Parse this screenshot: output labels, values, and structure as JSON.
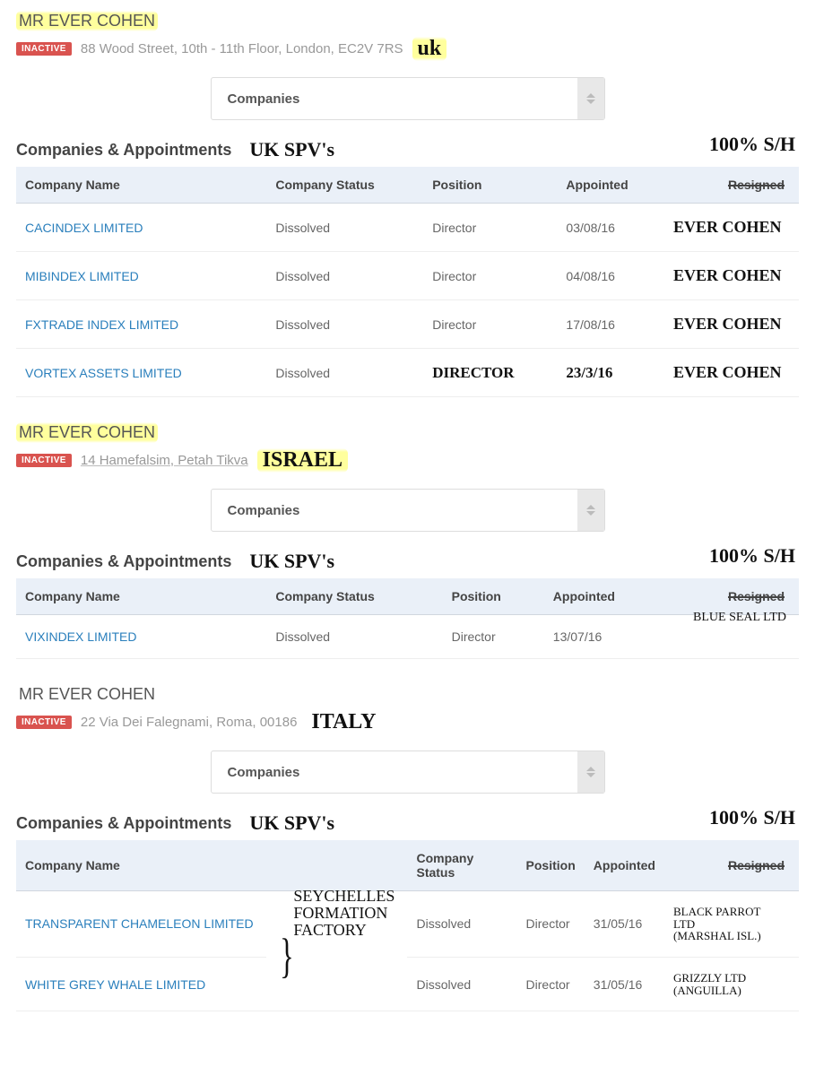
{
  "colors": {
    "badge_bg": "#d9534f",
    "link": "#2a7fbc",
    "thead_bg": "#eaf0f8",
    "highlight": "#fffa8f",
    "text": "#555555",
    "muted": "#999999",
    "border": "#e5e5e5"
  },
  "common": {
    "dropdown_label": "Companies",
    "ca_heading": "Companies & Appointments",
    "ca_hand": "UK SPV's",
    "sh_hand": "100% S/H",
    "badge": "INACTIVE",
    "th_company": "Company Name",
    "th_status": "Company Status",
    "th_position": "Position",
    "th_appointed": "Appointed",
    "th_resigned": "Resigned"
  },
  "sections": [
    {
      "name": "MR EVER COHEN",
      "highlight_name": true,
      "address": "88 Wood Street, 10th - 11th Floor, London, EC2V 7RS",
      "underline_addr": false,
      "country_hand": "uk",
      "country_highlight": true,
      "rows": [
        {
          "company": "CACINDEX LIMITED",
          "status": "Dissolved",
          "position": "Director",
          "appointed": "03/08/16",
          "note": "EVER COHEN",
          "pos_hand": false,
          "app_hand": false
        },
        {
          "company": "MIBINDEX LIMITED",
          "status": "Dissolved",
          "position": "Director",
          "appointed": "04/08/16",
          "note": "EVER COHEN",
          "pos_hand": false,
          "app_hand": false
        },
        {
          "company": "FXTRADE INDEX LIMITED",
          "status": "Dissolved",
          "position": "Director",
          "appointed": "17/08/16",
          "note": "EVER COHEN",
          "pos_hand": false,
          "app_hand": false
        },
        {
          "company": "VORTEX ASSETS LIMITED",
          "status": "Dissolved",
          "position": "DIRECTOR",
          "appointed": "23/3/16",
          "note": "EVER COHEN",
          "pos_hand": true,
          "app_hand": true
        }
      ]
    },
    {
      "name": "MR EVER COHEN",
      "highlight_name": true,
      "address": "14 Hamefalsim, Petah Tikva",
      "underline_addr": true,
      "country_hand": "ISRAEL",
      "country_highlight": true,
      "note_over_resigned": "BLUE SEAL LTD",
      "rows": [
        {
          "company": "VIXINDEX LIMITED",
          "status": "Dissolved",
          "position": "Director",
          "appointed": "13/07/16",
          "note": "",
          "pos_hand": false,
          "app_hand": false
        }
      ]
    },
    {
      "name": "MR EVER COHEN",
      "highlight_name": false,
      "address": "22 Via Dei Falegnami, Roma, 00186",
      "underline_addr": false,
      "country_hand": "ITALY",
      "country_highlight": false,
      "brace_label": "SEYCHELLES\nFORMATION\nFACTORY",
      "rows": [
        {
          "company": "TRANSPARENT CHAMELEON LIMITED",
          "status": "Dissolved",
          "position": "Director",
          "appointed": "31/05/16",
          "note_small": "BLACK PARROT\nLTD\n(MARSHAL ISL.)",
          "pos_hand": false,
          "app_hand": false
        },
        {
          "company": "WHITE GREY WHALE LIMITED",
          "status": "Dissolved",
          "position": "Director",
          "appointed": "31/05/16",
          "note_small": "GRIZZLY LTD\n(ANGUILLA)",
          "pos_hand": false,
          "app_hand": false
        }
      ]
    }
  ]
}
